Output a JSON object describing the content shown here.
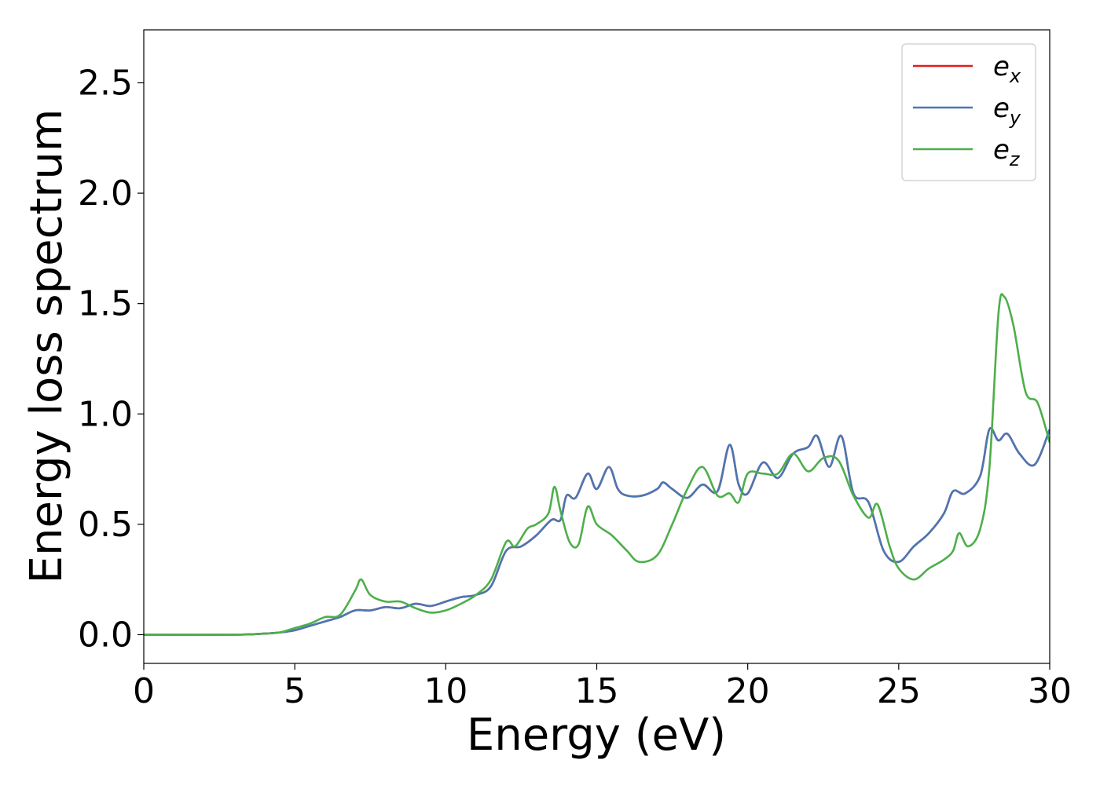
{
  "chart_data": {
    "type": "line",
    "title": "",
    "xlabel": "Energy (eV)",
    "ylabel": "Energy loss spectrum",
    "xlim": [
      0,
      30
    ],
    "ylim": [
      -0.13,
      2.74
    ],
    "xticks": [
      0,
      5,
      10,
      15,
      20,
      25,
      30
    ],
    "yticks": [
      0.0,
      0.5,
      1.0,
      1.5,
      2.0,
      2.5
    ],
    "xtick_labels": [
      "0",
      "5",
      "10",
      "15",
      "20",
      "25",
      "30"
    ],
    "ytick_labels": [
      "0.0",
      "0.5",
      "1.0",
      "1.5",
      "2.0",
      "2.5"
    ],
    "grid": false,
    "legend_position": "top-right",
    "series": [
      {
        "name_base": "e",
        "name_sub": "x",
        "color": "#e41a1c",
        "x": [
          0,
          3,
          4,
          4.5,
          5,
          5.5,
          6,
          6.5,
          7,
          7.5,
          8,
          8.5,
          9,
          9.5,
          10,
          10.5,
          11,
          11.5,
          12,
          12.5,
          13,
          13.5,
          13.8,
          14,
          14.3,
          14.7,
          15,
          15.4,
          15.7,
          16,
          16.5,
          17,
          17.2,
          17.5,
          18,
          18.5,
          19,
          19.4,
          19.7,
          20,
          20.5,
          21,
          21.5,
          22,
          22.3,
          22.7,
          23.1,
          23.5,
          24,
          24.5,
          25,
          25.5,
          26,
          26.5,
          26.8,
          27.2,
          27.7,
          28,
          28.3,
          28.6,
          29,
          29.5,
          30
        ],
        "y": [
          0.0,
          0.0,
          0.005,
          0.01,
          0.02,
          0.04,
          0.06,
          0.08,
          0.11,
          0.11,
          0.125,
          0.12,
          0.14,
          0.13,
          0.15,
          0.17,
          0.18,
          0.22,
          0.38,
          0.4,
          0.45,
          0.52,
          0.52,
          0.63,
          0.62,
          0.73,
          0.66,
          0.76,
          0.66,
          0.63,
          0.63,
          0.66,
          0.69,
          0.66,
          0.62,
          0.68,
          0.65,
          0.86,
          0.68,
          0.64,
          0.78,
          0.71,
          0.82,
          0.85,
          0.9,
          0.76,
          0.9,
          0.64,
          0.6,
          0.38,
          0.33,
          0.4,
          0.46,
          0.55,
          0.65,
          0.64,
          0.72,
          0.93,
          0.88,
          0.91,
          0.82,
          0.77,
          0.93
        ]
      },
      {
        "name_base": "e",
        "name_sub": "y",
        "color": "#4a77b4",
        "x": [
          0,
          3,
          4,
          4.5,
          5,
          5.5,
          6,
          6.5,
          7,
          7.5,
          8,
          8.5,
          9,
          9.5,
          10,
          10.5,
          11,
          11.5,
          12,
          12.5,
          13,
          13.5,
          13.8,
          14,
          14.3,
          14.7,
          15,
          15.4,
          15.7,
          16,
          16.5,
          17,
          17.2,
          17.5,
          18,
          18.5,
          19,
          19.4,
          19.7,
          20,
          20.5,
          21,
          21.5,
          22,
          22.3,
          22.7,
          23.1,
          23.5,
          24,
          24.5,
          25,
          25.5,
          26,
          26.5,
          26.8,
          27.2,
          27.7,
          28,
          28.3,
          28.6,
          29,
          29.5,
          30
        ],
        "y": [
          0.0,
          0.0,
          0.005,
          0.01,
          0.02,
          0.04,
          0.06,
          0.08,
          0.11,
          0.11,
          0.125,
          0.12,
          0.14,
          0.13,
          0.15,
          0.17,
          0.18,
          0.22,
          0.38,
          0.4,
          0.45,
          0.52,
          0.52,
          0.63,
          0.62,
          0.73,
          0.66,
          0.76,
          0.66,
          0.63,
          0.63,
          0.66,
          0.69,
          0.66,
          0.62,
          0.68,
          0.65,
          0.86,
          0.68,
          0.64,
          0.78,
          0.71,
          0.82,
          0.85,
          0.9,
          0.76,
          0.9,
          0.64,
          0.6,
          0.38,
          0.33,
          0.4,
          0.46,
          0.55,
          0.65,
          0.64,
          0.72,
          0.93,
          0.88,
          0.91,
          0.82,
          0.77,
          0.93
        ]
      },
      {
        "name_base": "e",
        "name_sub": "z",
        "color": "#4daf4a",
        "x": [
          0,
          3,
          4,
          4.5,
          5,
          5.5,
          6,
          6.5,
          7,
          7.2,
          7.5,
          8,
          8.5,
          9,
          9.5,
          10,
          10.5,
          11,
          11.5,
          12,
          12.3,
          12.7,
          13,
          13.4,
          13.6,
          13.8,
          14.1,
          14.4,
          14.7,
          15,
          15.5,
          16,
          16.4,
          17,
          17.5,
          18,
          18.5,
          19,
          19.4,
          19.7,
          20,
          20.5,
          21,
          21.5,
          22,
          22.5,
          23,
          23.5,
          24,
          24.3,
          24.7,
          25,
          25.5,
          26,
          26.5,
          26.8,
          27,
          27.3,
          27.7,
          28,
          28.3,
          28.5,
          28.8,
          29.2,
          29.6,
          30
        ],
        "y": [
          0.0,
          0.0,
          0.005,
          0.01,
          0.03,
          0.05,
          0.08,
          0.09,
          0.2,
          0.25,
          0.18,
          0.15,
          0.15,
          0.12,
          0.1,
          0.11,
          0.14,
          0.18,
          0.25,
          0.42,
          0.4,
          0.48,
          0.5,
          0.55,
          0.67,
          0.56,
          0.42,
          0.41,
          0.58,
          0.5,
          0.45,
          0.38,
          0.33,
          0.36,
          0.5,
          0.66,
          0.76,
          0.63,
          0.64,
          0.6,
          0.73,
          0.73,
          0.73,
          0.82,
          0.74,
          0.8,
          0.79,
          0.63,
          0.53,
          0.59,
          0.4,
          0.3,
          0.25,
          0.3,
          0.34,
          0.38,
          0.46,
          0.4,
          0.48,
          0.75,
          1.45,
          1.53,
          1.4,
          1.1,
          1.05,
          0.87
        ]
      }
    ]
  }
}
